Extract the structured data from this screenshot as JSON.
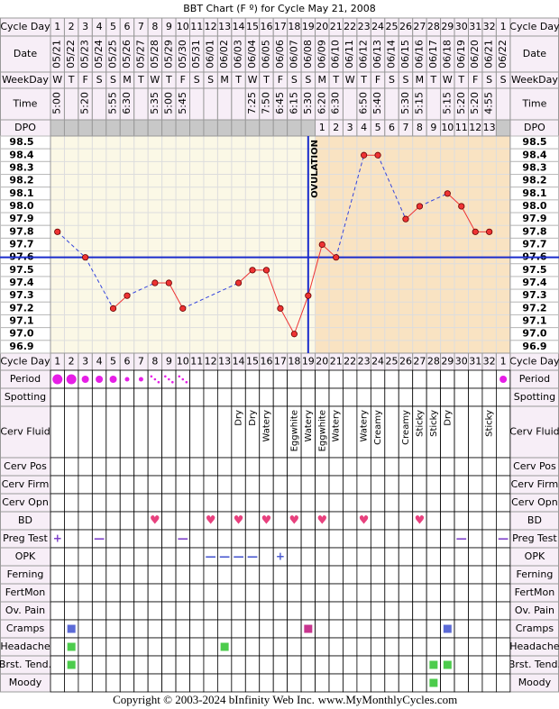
{
  "chart_data": {
    "type": "line",
    "title": "BBT Chart (F º) for Cycle May 21, 2008",
    "categories": [
      1,
      2,
      3,
      4,
      5,
      6,
      7,
      8,
      9,
      10,
      11,
      12,
      13,
      14,
      15,
      16,
      17,
      18,
      19,
      20,
      21,
      22,
      23,
      24,
      25,
      26,
      27,
      28,
      29,
      30,
      31,
      32,
      1
    ],
    "values": [
      97.8,
      null,
      97.6,
      null,
      97.2,
      97.3,
      null,
      97.4,
      97.4,
      97.2,
      null,
      null,
      null,
      97.4,
      97.5,
      97.5,
      97.2,
      97.0,
      97.3,
      97.7,
      97.6,
      null,
      98.4,
      98.4,
      null,
      97.9,
      98.0,
      null,
      98.1,
      98.0,
      97.8,
      97.8,
      null
    ],
    "color": "#e33",
    "ylim": [
      96.85,
      98.55
    ],
    "yticks": [
      98.5,
      98.4,
      98.3,
      98.2,
      98.1,
      {
        "value": 98,
        "label": "98.0"
      },
      97.9,
      97.8,
      97.7,
      97.6,
      97.5,
      97.4,
      97.3,
      97.2,
      97.1,
      {
        "value": 97,
        "label": "97.0"
      },
      96.9
    ],
    "coverline": 97.6,
    "ovulation_day": 19,
    "ovulation_label": "OVULATION"
  },
  "labels": {
    "cycle_day": "Cycle Day",
    "date": "Date",
    "weekday": "WeekDay",
    "time": "Time",
    "dpo": "DPO",
    "period": "Period",
    "spotting": "Spotting",
    "cerv_fluid": "Cerv Fluid",
    "cerv_pos": "Cerv Pos",
    "cerv_firm": "Cerv Firm",
    "cerv_opn": "Cerv Opn",
    "bd": "BD",
    "preg_test": "Preg Test",
    "opk": "OPK",
    "ferning": "Ferning",
    "fertmon": "FertMon",
    "ov_pain": "Ov. Pain",
    "cramps": "Cramps",
    "headache": "Headache",
    "brst_tend": "Brst. Tend.",
    "moody": "Moody"
  },
  "days": {
    "date": [
      "05/21",
      "05/22",
      "05/23",
      "05/24",
      "05/25",
      "05/26",
      "05/27",
      "05/28",
      "05/29",
      "05/30",
      "05/31",
      "06/01",
      "06/02",
      "06/03",
      "06/04",
      "06/05",
      "06/06",
      "06/07",
      "06/08",
      "06/09",
      "06/10",
      "06/11",
      "06/12",
      "06/13",
      "06/14",
      "06/15",
      "06/16",
      "06/17",
      "06/18",
      "06/19",
      "06/20",
      "06/21",
      "06/22"
    ],
    "weekday": [
      "W",
      "T",
      "F",
      "S",
      "S",
      "M",
      "T",
      "W",
      "T",
      "F",
      "S",
      "S",
      "M",
      "T",
      "W",
      "T",
      "F",
      "S",
      "S",
      "M",
      "T",
      "W",
      "T",
      "F",
      "S",
      "S",
      "M",
      "T",
      "W",
      "T",
      "F",
      "S",
      "S"
    ],
    "time": [
      "5:00",
      null,
      "5:20",
      null,
      "5:55",
      "6:30",
      null,
      "5:35",
      "5:00",
      "5:45",
      null,
      null,
      null,
      null,
      "7:25",
      "7:50",
      "6:45",
      "6:15",
      "5:30",
      "6:20",
      "6:30",
      null,
      "6:50",
      "5:40",
      null,
      "5:30",
      "5:15",
      null,
      "5:15",
      "5:20",
      "5:20",
      "4:55",
      null
    ],
    "dpo": [
      null,
      null,
      null,
      null,
      null,
      null,
      null,
      null,
      null,
      null,
      null,
      null,
      null,
      null,
      null,
      null,
      null,
      null,
      null,
      1,
      2,
      3,
      4,
      5,
      6,
      7,
      8,
      9,
      10,
      11,
      12,
      13,
      null
    ],
    "period": [
      "heavy",
      "heavy",
      "medium",
      "medium",
      "medium",
      "light",
      "light",
      "spotting",
      "spotting",
      "spotting",
      null,
      null,
      null,
      null,
      null,
      null,
      null,
      null,
      null,
      null,
      null,
      null,
      null,
      null,
      null,
      null,
      null,
      null,
      null,
      null,
      null,
      null,
      "medium"
    ],
    "period_color": "#e61ee6",
    "cerv_fluid": [
      null,
      null,
      null,
      null,
      null,
      null,
      null,
      null,
      null,
      null,
      null,
      null,
      null,
      "Dry",
      "Dry",
      "Watery",
      null,
      "Eggwhite",
      "Watery",
      "Eggwhite",
      "Watery",
      null,
      "Watery",
      "Creamy",
      null,
      "Creamy",
      "Sticky",
      "Sticky",
      "Dry",
      null,
      null,
      "Sticky",
      null
    ],
    "bd": [
      null,
      null,
      null,
      null,
      null,
      null,
      null,
      "♥",
      null,
      null,
      null,
      "♥",
      null,
      "♥",
      null,
      "♥",
      null,
      "♥",
      null,
      "♥",
      null,
      null,
      "♥",
      null,
      null,
      null,
      "♥",
      null,
      null,
      null,
      null,
      null,
      null
    ],
    "preg_test": [
      "+",
      null,
      null,
      "—",
      null,
      null,
      null,
      null,
      null,
      "—",
      null,
      null,
      null,
      null,
      null,
      null,
      null,
      null,
      null,
      null,
      null,
      null,
      null,
      null,
      null,
      null,
      null,
      null,
      null,
      "—",
      null,
      null,
      "—"
    ],
    "opk": [
      null,
      null,
      null,
      null,
      null,
      null,
      null,
      null,
      null,
      null,
      null,
      "—",
      "—",
      "—",
      "—",
      null,
      "+",
      null,
      null,
      null,
      null,
      null,
      null,
      null,
      null,
      null,
      null,
      null,
      null,
      null,
      null,
      null,
      null
    ],
    "symbol_colors": {
      "bd": "#e8417e",
      "preg_test": "#7d3fc8",
      "opk": "#4a5ad0"
    },
    "cramps": [
      null,
      "#5b6ad6",
      null,
      null,
      null,
      null,
      null,
      null,
      null,
      null,
      null,
      null,
      null,
      null,
      null,
      null,
      null,
      null,
      "#c8358f",
      null,
      null,
      null,
      null,
      null,
      null,
      null,
      null,
      null,
      "#5b6ad6",
      null,
      null,
      null,
      null
    ],
    "headache": [
      null,
      "#4ccc4c",
      null,
      null,
      null,
      null,
      null,
      null,
      null,
      null,
      null,
      null,
      "#4ccc4c",
      null,
      null,
      null,
      null,
      null,
      null,
      null,
      null,
      null,
      null,
      null,
      null,
      null,
      null,
      null,
      null,
      null,
      null,
      null,
      null
    ],
    "brst_tend": [
      null,
      "#4ccc4c",
      null,
      null,
      null,
      null,
      null,
      null,
      null,
      null,
      null,
      null,
      null,
      null,
      null,
      null,
      null,
      null,
      null,
      null,
      null,
      null,
      null,
      null,
      null,
      null,
      null,
      "#4ccc4c",
      "#4ccc4c",
      null,
      null,
      null,
      null
    ],
    "moody": [
      null,
      null,
      null,
      null,
      null,
      null,
      null,
      null,
      null,
      null,
      null,
      null,
      null,
      null,
      null,
      null,
      null,
      null,
      null,
      null,
      null,
      null,
      null,
      null,
      null,
      null,
      null,
      "#4ccc4c",
      null,
      null,
      null,
      null,
      null
    ]
  },
  "footer": {
    "copyright": "Copyright © 2003-2024 bInfinity Web Inc.",
    "site": "www.MyMonthlyCycles.com"
  }
}
